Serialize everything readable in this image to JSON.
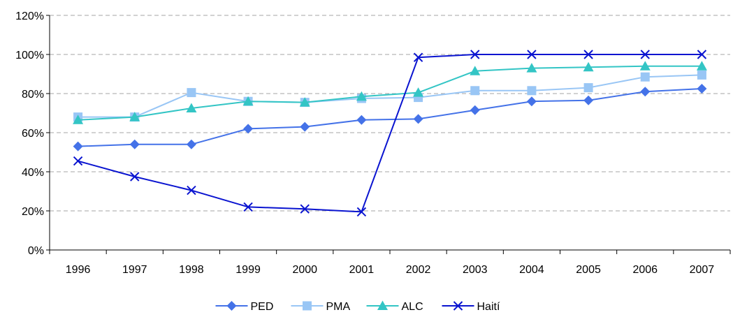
{
  "chart_data": {
    "type": "line",
    "title": "",
    "xlabel": "",
    "ylabel": "",
    "categories": [
      "1996",
      "1997",
      "1998",
      "1999",
      "2000",
      "2001",
      "2002",
      "2003",
      "2004",
      "2005",
      "2006",
      "2007"
    ],
    "ylim": [
      0,
      120
    ],
    "yticks": [
      0,
      20,
      40,
      60,
      80,
      100,
      120
    ],
    "ytick_labels": [
      "0%",
      "20%",
      "40%",
      "60%",
      "80%",
      "100%",
      "120%"
    ],
    "grid": true,
    "legend_position": "bottom",
    "series": [
      {
        "name": "PED",
        "color": "#4472e8",
        "marker": "diamond",
        "values": [
          53,
          54,
          54,
          62,
          63,
          66.5,
          67,
          71.5,
          76,
          76.5,
          81,
          82.5
        ]
      },
      {
        "name": "PMA",
        "color": "#99c6f5",
        "marker": "square",
        "values": [
          68,
          68,
          80.5,
          76,
          75.5,
          77.5,
          78,
          81.5,
          81.5,
          83,
          88.5,
          89.5
        ]
      },
      {
        "name": "ALC",
        "color": "#33c5c5",
        "marker": "triangle",
        "values": [
          66.5,
          68,
          72.5,
          76,
          75.5,
          78.5,
          80.5,
          91.5,
          93,
          93.5,
          94,
          94
        ]
      },
      {
        "name": "Haití",
        "color": "#0a14d0",
        "marker": "x",
        "values": [
          45.5,
          37.5,
          30.5,
          22,
          21,
          19.5,
          98.5,
          100,
          100,
          100,
          100,
          100
        ]
      }
    ]
  }
}
